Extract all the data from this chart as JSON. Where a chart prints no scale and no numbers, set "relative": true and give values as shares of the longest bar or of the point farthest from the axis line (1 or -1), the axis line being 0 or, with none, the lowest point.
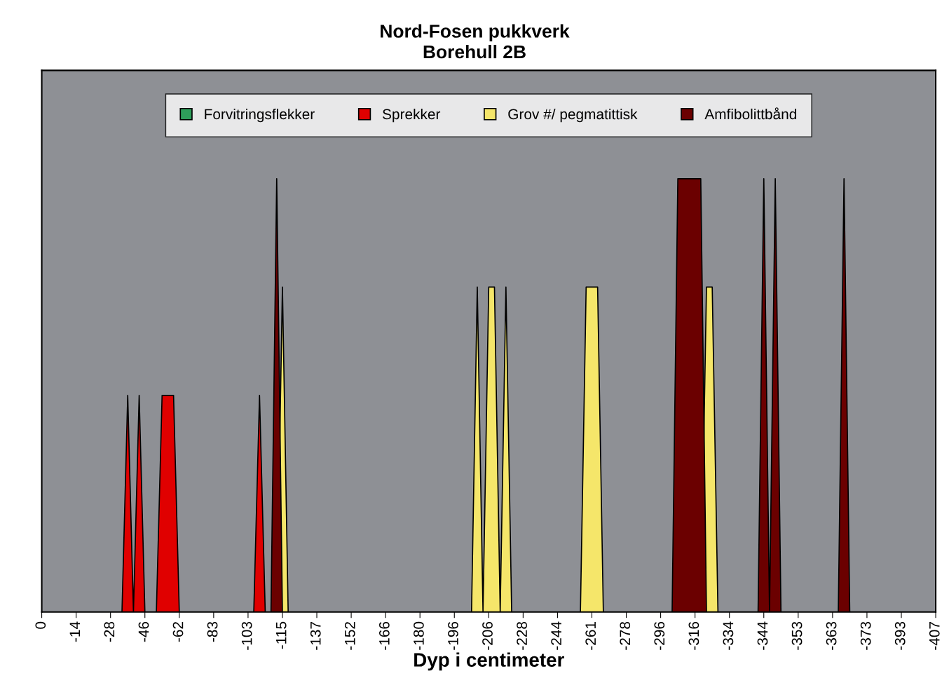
{
  "chart_data": {
    "type": "area",
    "title": "Nord-Fosen pukkverk",
    "subtitle": "Borehull 2B",
    "xlabel": "Dyp i centimeter",
    "relative": true,
    "legend": "top",
    "grid": false,
    "categories": [
      "0",
      null,
      null,
      null,
      null,
      null,
      "-14",
      null,
      null,
      null,
      null,
      null,
      "-28",
      null,
      null,
      null,
      null,
      null,
      "-46",
      null,
      null,
      null,
      null,
      null,
      "-62",
      null,
      null,
      null,
      null,
      null,
      "-83",
      null,
      null,
      null,
      null,
      null,
      "-103",
      null,
      null,
      null,
      null,
      null,
      "-115",
      null,
      null,
      null,
      null,
      null,
      "-137",
      null,
      null,
      null,
      null,
      null,
      "-152",
      null,
      null,
      null,
      null,
      null,
      "-166",
      null,
      null,
      null,
      null,
      null,
      "-180",
      null,
      null,
      null,
      null,
      null,
      "-196",
      null,
      null,
      null,
      null,
      null,
      "-206",
      null,
      null,
      null,
      null,
      null,
      "-228",
      null,
      null,
      null,
      null,
      null,
      "-244",
      null,
      null,
      null,
      null,
      null,
      "-261",
      null,
      null,
      null,
      null,
      null,
      "-278",
      null,
      null,
      null,
      null,
      null,
      "-296",
      null,
      null,
      null,
      null,
      null,
      "-316",
      null,
      null,
      null,
      null,
      null,
      "-334",
      null,
      null,
      null,
      null,
      null,
      "-344",
      null,
      null,
      null,
      null,
      null,
      "-353",
      null,
      null,
      null,
      null,
      null,
      "-363",
      null,
      null,
      null,
      null,
      null,
      "-373",
      null,
      null,
      null,
      null,
      null,
      "-393",
      null,
      null,
      null,
      null,
      null,
      "-407"
    ],
    "series": [
      {
        "name": "Forvitringsflekker",
        "color": "#2e9e5b",
        "values": [
          null,
          null,
          null,
          null,
          null,
          null,
          null,
          null,
          null,
          null,
          null,
          null,
          null,
          null,
          null,
          null,
          null,
          null,
          null,
          null,
          null,
          null,
          null,
          null,
          null,
          null,
          null,
          null,
          null,
          null,
          null,
          null,
          null,
          null,
          null,
          null,
          null,
          null,
          null,
          null,
          null,
          null,
          null,
          null,
          null,
          null,
          null,
          null,
          null,
          null,
          null,
          null,
          null,
          null,
          null,
          null,
          null,
          null,
          null,
          null,
          null,
          null,
          null,
          null,
          null,
          null,
          null,
          null,
          null,
          null,
          null,
          null,
          null,
          null,
          null,
          null,
          null,
          null,
          null,
          null,
          null,
          null,
          null,
          null,
          null,
          null,
          null,
          null,
          null,
          null,
          null,
          null,
          null,
          null,
          null,
          null,
          null,
          null,
          null,
          null,
          null,
          null,
          null,
          null,
          null,
          null,
          null,
          null,
          null,
          null,
          null,
          null,
          null,
          null,
          null,
          null,
          null,
          null,
          null,
          null,
          null,
          null,
          null,
          null,
          null,
          null,
          null,
          null,
          null,
          null,
          null,
          null,
          null,
          null,
          null,
          null,
          null,
          null,
          null,
          null,
          null,
          null,
          null,
          null,
          null,
          null,
          null,
          null,
          null,
          null,
          null,
          null,
          null,
          null,
          null,
          null,
          null
        ]
      },
      {
        "name": "Sprekker",
        "color": "#e00000",
        "values": [
          0,
          0,
          0,
          0,
          0,
          0,
          0,
          0,
          0,
          0,
          0,
          0,
          0,
          0,
          0,
          0.5,
          0,
          0.5,
          0,
          0,
          0,
          0.5,
          0.5,
          0.5,
          0,
          0,
          0,
          0,
          0,
          0,
          0,
          0,
          0,
          0,
          0,
          0,
          0,
          0,
          0.5,
          0,
          0,
          0,
          0,
          0,
          0,
          0,
          0,
          0,
          0,
          0,
          0,
          0,
          0,
          0,
          0,
          0,
          0,
          0,
          0,
          0,
          0,
          0,
          0,
          0,
          0,
          0,
          0,
          0,
          0,
          0,
          0,
          0,
          0,
          0,
          0,
          0,
          0,
          0,
          0,
          0,
          0,
          0,
          0,
          0,
          0,
          0,
          0,
          0,
          0,
          0,
          0,
          0,
          0,
          0,
          0,
          0,
          0,
          0,
          0,
          0,
          0,
          0,
          0,
          0,
          0,
          0,
          0,
          0,
          0,
          0,
          0,
          0,
          0,
          0,
          0,
          0,
          0,
          0,
          0,
          0,
          0,
          0,
          0,
          0,
          0,
          0,
          0,
          0,
          0,
          0,
          0,
          0,
          0,
          0,
          0,
          0,
          0,
          0,
          0,
          0,
          0,
          0,
          0,
          0,
          0,
          0,
          0,
          0,
          0,
          0,
          0,
          0,
          0,
          0,
          0,
          0,
          0
        ]
      },
      {
        "name": "Grov #/ pegmatittisk",
        "color": "#f5e66a",
        "values": [
          0,
          0,
          0,
          0,
          0,
          0,
          0,
          0,
          0,
          0,
          0,
          0,
          0,
          0,
          0,
          0,
          0,
          0,
          0,
          0,
          0,
          0,
          0,
          0,
          0,
          0,
          0,
          0,
          0,
          0,
          0,
          0,
          0,
          0,
          0,
          0,
          0,
          0,
          0,
          0,
          0,
          0,
          0.75,
          0,
          0,
          0,
          0,
          0,
          0,
          0,
          0,
          0,
          0,
          0,
          0,
          0,
          0,
          0,
          0,
          0,
          0,
          0,
          0,
          0,
          0,
          0,
          0,
          0,
          0,
          0,
          0,
          0,
          0,
          0,
          0,
          0,
          0.75,
          0,
          0.75,
          0.75,
          0,
          0.75,
          0,
          0,
          0,
          0,
          0,
          0,
          0,
          0,
          0,
          0,
          0,
          0,
          0,
          0.75,
          0.75,
          0.75,
          0,
          0,
          0,
          0,
          0,
          0,
          0,
          0,
          0,
          0,
          0,
          0,
          0,
          0,
          0,
          0,
          0,
          0,
          0.75,
          0.75,
          0,
          0,
          0,
          0,
          0,
          0,
          0,
          0,
          0,
          0,
          0,
          0,
          0,
          0,
          0,
          0,
          0,
          0,
          0,
          0,
          0,
          0,
          0,
          0,
          0,
          0,
          0,
          0,
          0,
          0,
          0,
          0,
          0,
          0,
          0,
          0,
          0,
          0,
          0
        ]
      },
      {
        "name": "Amfibolittbånd",
        "color": "#6b0000",
        "values": [
          0,
          0,
          0,
          0,
          0,
          0,
          0,
          0,
          0,
          0,
          0,
          0,
          0,
          0,
          0,
          0,
          0,
          0,
          0,
          0,
          0,
          0,
          0,
          0,
          0,
          0,
          0,
          0,
          0,
          0,
          0,
          0,
          0,
          0,
          0,
          0,
          0,
          0,
          0,
          0,
          0,
          1,
          0,
          0,
          0,
          0,
          0,
          0,
          0,
          0,
          0,
          0,
          0,
          0,
          0,
          0,
          0,
          0,
          0,
          0,
          0,
          0,
          0,
          0,
          0,
          0,
          0,
          0,
          0,
          0,
          0,
          0,
          0,
          0,
          0,
          0,
          0,
          0,
          0,
          0,
          0,
          0,
          0,
          0,
          0,
          0,
          0,
          0,
          0,
          0,
          0,
          0,
          0,
          0,
          0,
          0,
          0,
          0,
          0,
          0,
          0,
          0,
          0,
          0,
          0,
          0,
          0,
          0,
          0,
          0,
          0,
          1,
          1,
          1,
          1,
          1,
          0,
          0,
          0,
          0,
          0,
          0,
          0,
          0,
          0,
          0,
          1,
          0,
          1,
          0,
          0,
          0,
          0,
          0,
          0,
          0,
          0,
          0,
          0,
          0,
          1,
          0,
          0,
          0,
          0,
          0,
          0,
          0,
          0,
          0,
          0,
          0,
          0,
          0,
          0,
          0,
          0
        ]
      }
    ]
  }
}
